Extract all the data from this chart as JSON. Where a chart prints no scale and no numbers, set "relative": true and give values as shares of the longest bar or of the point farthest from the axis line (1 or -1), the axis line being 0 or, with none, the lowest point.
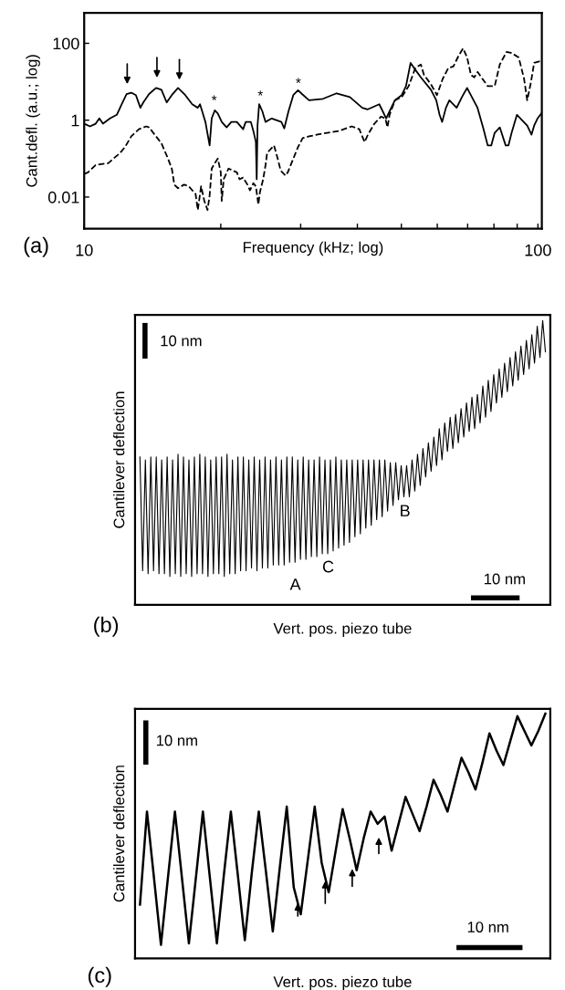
{
  "chart_data": [
    {
      "type": "line",
      "xlabel": "Frequency (kHz; log)",
      "ylabel": "Cant.defl. (a.u.; log)",
      "log": "xy",
      "xlim": [
        10,
        102
      ],
      "ylim": [
        0.0015,
        620
      ],
      "xticks": [
        10,
        {
          "value": 20,
          "label": null
        },
        {
          "value": 30,
          "label": null
        },
        {
          "value": 40,
          "label": null
        },
        {
          "value": 50,
          "label": null
        },
        {
          "value": 60,
          "label": null
        },
        {
          "value": 70,
          "label": null
        },
        {
          "value": 80,
          "label": null
        },
        {
          "value": 90,
          "label": null
        },
        100
      ],
      "yticks": [
        0.01,
        1,
        100
      ],
      "grid": false,
      "series": [
        {
          "color": "#000000",
          "line_style": "solid",
          "x": [
            10,
            10.3,
            10.6,
            10.8,
            11.0,
            11.4,
            11.8,
            12.1,
            12.4,
            12.7,
            13.0,
            13.3,
            13.5,
            13.9,
            14.4,
            14.8,
            15.2,
            15.6,
            16.1,
            16.7,
            17.3,
            17.8,
            18.0,
            18.2,
            18.5,
            18.9,
            19.1,
            19.4,
            19.7,
            20.1,
            20.6,
            21.1,
            21.7,
            22.4,
            22.7,
            23.3,
            23.6,
            23.9,
            24.0,
            24.1,
            24.3,
            24.7,
            25.1,
            25.9,
            27.2,
            27.6,
            28.2,
            28.9,
            29.6,
            30.2,
            31.3,
            33.6,
            36.0,
            38.5,
            41.0,
            42.1,
            44.7,
            45.5,
            46.3,
            47.1,
            48.4,
            50.1,
            51.2,
            52.4,
            53.3,
            55.2,
            58.1,
            59.7,
            60.7,
            61.5,
            62.7,
            63.8,
            66.2,
            68.0,
            69.8,
            73.6,
            75.9,
            77.5,
            78.9,
            80.3,
            82.4,
            84.9,
            86.1,
            87.5,
            89.9,
            94.7,
            96.8,
            98.1,
            99.8,
            101.8
          ],
          "values": [
            0.81,
            0.69,
            0.81,
            1.11,
            0.81,
            1.11,
            1.38,
            2.6,
            4.8,
            5.2,
            4.5,
            2.1,
            2.9,
            4.8,
            6.9,
            6.2,
            2.9,
            4.5,
            6.9,
            4.5,
            2.6,
            2.1,
            2.6,
            1.7,
            0.9,
            0.22,
            1.11,
            1.8,
            1.5,
            0.9,
            0.65,
            0.9,
            0.9,
            0.58,
            0.9,
            0.9,
            0.52,
            0.27,
            0.029,
            0.72,
            2.6,
            1.7,
            0.9,
            1.11,
            0.9,
            0.61,
            1.7,
            4.5,
            6.0,
            4.8,
            3.3,
            3.6,
            5.0,
            4.0,
            2.1,
            1.9,
            2.6,
            1.7,
            1.11,
            1.7,
            3.3,
            4.5,
            7.7,
            31,
            23,
            13,
            6.2,
            3.3,
            1.38,
            0.9,
            2.1,
            3.3,
            2.1,
            4.0,
            6.9,
            2.1,
            0.58,
            0.22,
            0.22,
            0.47,
            0.65,
            0.22,
            0.22,
            0.47,
            1.38,
            0.72,
            0.42,
            0.72,
            1.11,
            1.5
          ]
        },
        {
          "color": "#000000",
          "line_style": "dashed",
          "x": [
            10,
            10.2,
            10.6,
            11.3,
            11.6,
            12.0,
            12.3,
            12.7,
            13.2,
            13.7,
            13.9,
            14.3,
            14.8,
            15.3,
            15.6,
            15.8,
            16.1,
            16.6,
            17.0,
            17.3,
            17.6,
            17.8,
            18.1,
            18.4,
            18.7,
            18.9,
            19.1,
            19.4,
            19.7,
            20.0,
            20.1,
            20.3,
            20.8,
            21.7,
            22.0,
            22.4,
            22.9,
            23.2,
            23.6,
            23.9,
            24.2,
            24.4,
            24.8,
            25.1,
            25.3,
            26.2,
            26.7,
            27.1,
            27.8,
            28.1,
            28.9,
            29.6,
            30.3,
            31.3,
            33.6,
            36.3,
            38.9,
            40.4,
            41.0,
            41.5,
            42.2,
            43.6,
            45.1,
            46.1,
            46.6,
            47.1,
            48.4,
            50.1,
            51.9,
            53.7,
            55.2,
            56.1,
            58.1,
            59.9,
            61.7,
            63.5,
            65.1,
            66.9,
            68.4,
            69.8,
            71.2,
            72.4,
            73.6,
            77.5,
            80.3,
            82.4,
            85.3,
            87.5,
            90.7,
            93.2,
            94.7,
            96.5,
            98.1,
            101.8
          ],
          "values": [
            0.04,
            0.044,
            0.068,
            0.076,
            0.1,
            0.14,
            0.2,
            0.38,
            0.58,
            0.69,
            0.65,
            0.42,
            0.25,
            0.1,
            0.055,
            0.021,
            0.017,
            0.021,
            0.019,
            0.015,
            0.012,
            0.0046,
            0.019,
            0.0079,
            0.0046,
            0.011,
            0.055,
            0.076,
            0.1,
            0.044,
            0.0079,
            0.029,
            0.055,
            0.044,
            0.029,
            0.032,
            0.021,
            0.015,
            0.023,
            0.019,
            0.0064,
            0.0135,
            0.029,
            0.068,
            0.14,
            0.22,
            0.1,
            0.049,
            0.036,
            0.044,
            0.1,
            0.2,
            0.34,
            0.38,
            0.45,
            0.52,
            0.69,
            0.58,
            0.38,
            0.27,
            0.42,
            0.81,
            1.24,
            1.11,
            0.65,
            1.38,
            3.3,
            4.0,
            7.7,
            23,
            28,
            15,
            8.6,
            4.5,
            12,
            23,
            25,
            48,
            74,
            43,
            15,
            13,
            18,
            7.7,
            7.7,
            28,
            60,
            56,
            43,
            12,
            3.3,
            9.6,
            31,
            35
          ]
        }
      ],
      "annotations": [
        "(a)",
        "*",
        "*",
        "*"
      ]
    },
    {
      "type": "line",
      "relative": true,
      "xlabel": "Vert. pos. piezo tube",
      "ylabel": "Cantilever deflection",
      "color": "#000000",
      "categories": [
        null,
        null,
        null,
        null,
        null,
        null,
        null,
        null,
        null,
        null,
        null,
        null,
        null,
        null,
        null,
        null,
        null,
        null,
        null,
        null,
        null,
        null,
        null,
        null,
        null,
        null,
        null,
        null,
        null,
        null,
        null,
        null,
        null,
        null,
        null,
        null,
        null,
        null,
        null,
        null,
        null,
        null,
        null,
        null,
        null,
        null,
        null,
        null,
        null,
        null,
        null,
        null,
        null,
        null,
        null,
        null,
        null,
        null,
        null,
        null,
        null,
        null,
        null,
        null,
        null,
        null,
        null,
        null,
        null,
        null,
        null,
        null,
        null,
        null,
        null,
        null,
        null,
        null,
        null,
        null,
        null,
        null,
        null,
        null,
        null,
        null,
        null,
        null,
        null,
        null,
        null,
        null,
        null,
        null,
        null,
        null,
        null,
        null,
        null,
        null,
        null,
        null,
        null,
        null,
        null,
        null,
        null,
        null,
        null,
        null,
        null,
        null,
        null,
        null,
        null,
        null,
        null,
        null,
        null,
        null,
        null,
        null,
        null,
        null,
        null,
        null,
        null,
        null,
        null,
        null,
        null,
        null,
        null,
        null,
        null,
        null,
        null,
        null,
        null,
        null,
        null,
        null,
        null,
        null,
        null,
        null,
        null,
        null,
        null,
        null
      ],
      "values": [
        0.52,
        0.12,
        0.51,
        0.11,
        0.52,
        0.12,
        0.52,
        0.11,
        0.51,
        0.11,
        0.52,
        0.1,
        0.51,
        0.11,
        0.53,
        0.1,
        0.52,
        0.11,
        0.51,
        0.1,
        0.52,
        0.11,
        0.53,
        0.11,
        0.52,
        0.1,
        0.51,
        0.11,
        0.52,
        0.11,
        0.52,
        0.1,
        0.53,
        0.11,
        0.51,
        0.11,
        0.52,
        0.12,
        0.52,
        0.12,
        0.51,
        0.13,
        0.52,
        0.12,
        0.51,
        0.13,
        0.52,
        0.13,
        0.51,
        0.14,
        0.52,
        0.14,
        0.51,
        0.14,
        0.52,
        0.15,
        0.52,
        0.15,
        0.51,
        0.16,
        0.52,
        0.16,
        0.51,
        0.17,
        0.51,
        0.17,
        0.52,
        0.18,
        0.51,
        0.18,
        0.51,
        0.19,
        0.52,
        0.2,
        0.51,
        0.21,
        0.51,
        0.22,
        0.51,
        0.24,
        0.51,
        0.25,
        0.51,
        0.27,
        0.51,
        0.28,
        0.51,
        0.3,
        0.51,
        0.31,
        0.51,
        0.33,
        0.5,
        0.35,
        0.5,
        0.37,
        0.49,
        0.38,
        0.49,
        0.38,
        0.51,
        0.4,
        0.53,
        0.42,
        0.55,
        0.45,
        0.57,
        0.47,
        0.59,
        0.49,
        0.62,
        0.51,
        0.64,
        0.54,
        0.66,
        0.55,
        0.67,
        0.57,
        0.69,
        0.59,
        0.71,
        0.61,
        0.73,
        0.62,
        0.74,
        0.64,
        0.77,
        0.66,
        0.79,
        0.68,
        0.81,
        0.71,
        0.83,
        0.73,
        0.85,
        0.75,
        0.87,
        0.77,
        0.89,
        0.79,
        0.91,
        0.81,
        0.93,
        0.83,
        0.95,
        0.85,
        0.98,
        0.87,
        1.0,
        0.89
      ],
      "annotations": [
        "(b)",
        "10 nm",
        "A",
        "C",
        "B",
        "10 nm"
      ]
    },
    {
      "type": "line",
      "relative": true,
      "xlabel": "Vert. pos. piezo tube",
      "ylabel": "Cantilever deflection",
      "color": "#000000",
      "categories": [
        null,
        null,
        null,
        null,
        null,
        null,
        null,
        null,
        null,
        null,
        null,
        null,
        null,
        null,
        null,
        null,
        null,
        null,
        null,
        null,
        null,
        null,
        null,
        null,
        null,
        null,
        null,
        null,
        null,
        null,
        null,
        null,
        null,
        null,
        null,
        null,
        null,
        null,
        null,
        null,
        null,
        null,
        null,
        null,
        null,
        null,
        null,
        null,
        null,
        null,
        null,
        null,
        null,
        null,
        null,
        null,
        null,
        null,
        null
      ],
      "values": [
        0.22,
        0.6,
        0.33,
        0.055,
        0.33,
        0.6,
        0.33,
        0.061,
        0.33,
        0.6,
        0.33,
        0.061,
        0.34,
        0.6,
        0.34,
        0.074,
        0.35,
        0.6,
        0.36,
        0.11,
        0.37,
        0.62,
        0.29,
        0.18,
        0.4,
        0.62,
        0.39,
        0.27,
        0.44,
        0.61,
        0.49,
        0.36,
        0.49,
        0.6,
        0.55,
        0.58,
        0.44,
        0.55,
        0.66,
        0.59,
        0.52,
        0.62,
        0.73,
        0.67,
        0.6,
        0.71,
        0.82,
        0.76,
        0.69,
        0.8,
        0.92,
        0.85,
        0.79,
        0.89,
        0.99,
        0.93,
        0.87,
        0.93,
        1.0
      ],
      "annotations": [
        "(c)",
        "10 nm",
        "10 nm"
      ]
    }
  ]
}
